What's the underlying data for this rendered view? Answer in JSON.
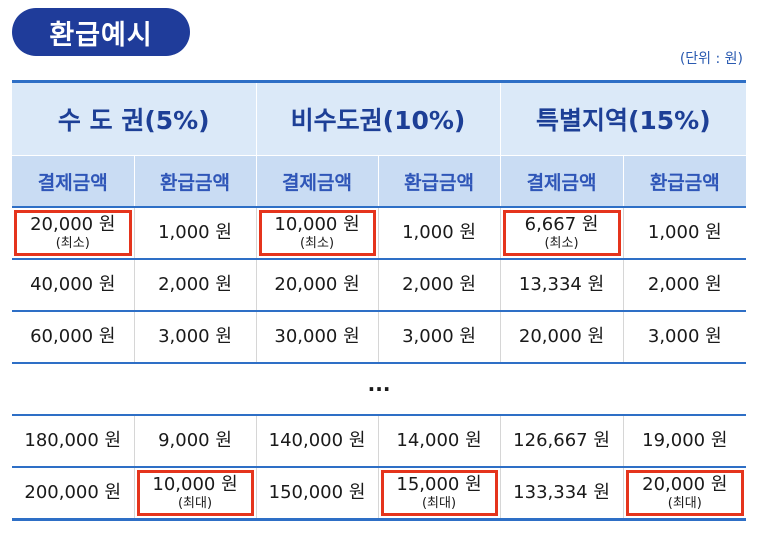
{
  "title": "환급예시",
  "unit_note": "(단위 : 원)",
  "regions": [
    "수 도 권(5%)",
    "비수도권(10%)",
    "특별지역(15%)"
  ],
  "sub_headers": [
    "결제금액",
    "환급금액",
    "결제금액",
    "환급금액",
    "결제금액",
    "환급금액"
  ],
  "ellipsis": "···",
  "colors": {
    "title_bg": "#1f3c9a",
    "header_bg": "#dbe9f8",
    "subheader_bg": "#c9dcf3",
    "border": "#2e6fc6",
    "highlight": "#e5341c"
  },
  "rows_top": [
    {
      "cells": [
        {
          "amount": "20,000 원",
          "note": "(최소)",
          "highlight": true
        },
        {
          "amount": "1,000 원",
          "note": "",
          "highlight": false
        },
        {
          "amount": "10,000 원",
          "note": "(최소)",
          "highlight": true
        },
        {
          "amount": "1,000 원",
          "note": "",
          "highlight": false
        },
        {
          "amount": "6,667 원",
          "note": "(최소)",
          "highlight": true
        },
        {
          "amount": "1,000 원",
          "note": "",
          "highlight": false
        }
      ]
    },
    {
      "cells": [
        {
          "amount": "40,000 원",
          "note": "",
          "highlight": false
        },
        {
          "amount": "2,000 원",
          "note": "",
          "highlight": false
        },
        {
          "amount": "20,000 원",
          "note": "",
          "highlight": false
        },
        {
          "amount": "2,000 원",
          "note": "",
          "highlight": false
        },
        {
          "amount": "13,334 원",
          "note": "",
          "highlight": false
        },
        {
          "amount": "2,000 원",
          "note": "",
          "highlight": false
        }
      ]
    },
    {
      "cells": [
        {
          "amount": "60,000 원",
          "note": "",
          "highlight": false
        },
        {
          "amount": "3,000 원",
          "note": "",
          "highlight": false
        },
        {
          "amount": "30,000 원",
          "note": "",
          "highlight": false
        },
        {
          "amount": "3,000 원",
          "note": "",
          "highlight": false
        },
        {
          "amount": "20,000 원",
          "note": "",
          "highlight": false
        },
        {
          "amount": "3,000 원",
          "note": "",
          "highlight": false
        }
      ]
    }
  ],
  "rows_bottom": [
    {
      "cells": [
        {
          "amount": "180,000 원",
          "note": "",
          "highlight": false
        },
        {
          "amount": "9,000 원",
          "note": "",
          "highlight": false
        },
        {
          "amount": "140,000 원",
          "note": "",
          "highlight": false
        },
        {
          "amount": "14,000 원",
          "note": "",
          "highlight": false
        },
        {
          "amount": "126,667 원",
          "note": "",
          "highlight": false
        },
        {
          "amount": "19,000 원",
          "note": "",
          "highlight": false
        }
      ]
    },
    {
      "cells": [
        {
          "amount": "200,000 원",
          "note": "",
          "highlight": false
        },
        {
          "amount": "10,000 원",
          "note": "(최대)",
          "highlight": true
        },
        {
          "amount": "150,000 원",
          "note": "",
          "highlight": false
        },
        {
          "amount": "15,000 원",
          "note": "(최대)",
          "highlight": true
        },
        {
          "amount": "133,334 원",
          "note": "",
          "highlight": false
        },
        {
          "amount": "20,000 원",
          "note": "(최대)",
          "highlight": true
        }
      ]
    }
  ]
}
